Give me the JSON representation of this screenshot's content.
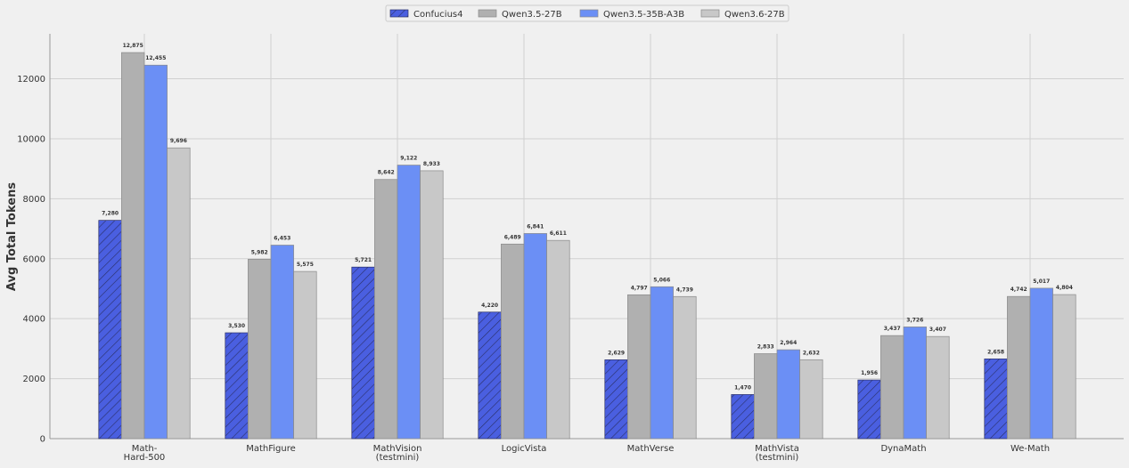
{
  "chart_data": {
    "type": "bar",
    "title": "",
    "xlabel": "",
    "ylabel": "Avg Total Tokens",
    "ylim": [
      0,
      13500
    ],
    "yticks": [
      0,
      2000,
      4000,
      6000,
      8000,
      10000,
      12000
    ],
    "grid": true,
    "legend_position": "top-center",
    "categories": [
      [
        "Math-",
        "Hard-500"
      ],
      [
        "MathFigure"
      ],
      [
        "MathVision",
        "(testmini)"
      ],
      [
        "LogicVista"
      ],
      [
        "MathVerse"
      ],
      [
        "MathVista",
        "(testmini)"
      ],
      [
        "DynaMath"
      ],
      [
        "We-Math"
      ]
    ],
    "series": [
      {
        "name": "Confucius4",
        "color": "#4a5fe0",
        "hatch": true,
        "values": [
          7280,
          3530,
          5721,
          4220,
          2629,
          1470,
          1956,
          2658
        ],
        "labels": [
          "7,280",
          "3,530",
          "5,721",
          "4,220",
          "2,629",
          "1,470",
          "1,956",
          "2,658"
        ]
      },
      {
        "name": "Qwen3.5-27B",
        "color": "#b0b0b0",
        "hatch": false,
        "values": [
          12875,
          5982,
          8642,
          6489,
          4797,
          2833,
          3437,
          4742
        ],
        "labels": [
          "12,875",
          "5,982",
          "8,642",
          "6,489",
          "4,797",
          "2,833",
          "3,437",
          "4,742"
        ]
      },
      {
        "name": "Qwen3.5-35B-A3B",
        "color": "#6b8ff5",
        "hatch": false,
        "values": [
          12455,
          6453,
          9122,
          6841,
          5066,
          2964,
          3726,
          5017
        ],
        "labels": [
          "12,455",
          "6,453",
          "9,122",
          "6,841",
          "5,066",
          "2,964",
          "3,726",
          "5,017"
        ]
      },
      {
        "name": "Qwen3.6-27B",
        "color": "#c8c8c8",
        "hatch": false,
        "values": [
          9696,
          5575,
          8933,
          6611,
          4739,
          2632,
          3407,
          4804
        ],
        "labels": [
          "9,696",
          "5,575",
          "8,933",
          "6,611",
          "4,739",
          "2,632",
          "3,407",
          "4,804"
        ]
      }
    ]
  }
}
